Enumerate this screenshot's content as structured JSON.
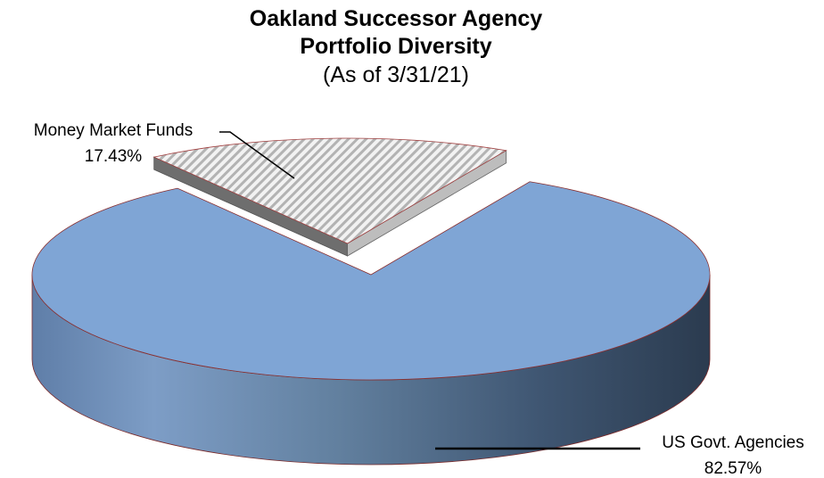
{
  "chart_data": {
    "type": "pie",
    "title": "Oakland Successor Agency",
    "subtitle": "Portfolio Diversity",
    "date_note": "(As of 3/31/21)",
    "slices": [
      {
        "label": "Money Market Funds",
        "value": 17.43,
        "value_text": "17.43%",
        "color": "#d9d9d9",
        "pattern": "diagonal-hatch",
        "exploded": true
      },
      {
        "label": "US Govt. Agencies",
        "value": 82.57,
        "value_text": "82.57%",
        "color": "#7fa5d5"
      }
    ],
    "legend": "none",
    "style": "3d-exploded"
  }
}
